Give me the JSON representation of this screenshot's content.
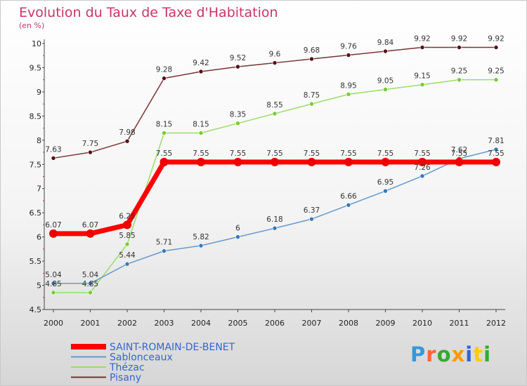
{
  "chart_data": {
    "type": "line",
    "title": "Evolution du Taux de Taxe d'Habitation",
    "unit_label": "(en %)",
    "x": [
      "2000",
      "2001",
      "2002",
      "2003",
      "2004",
      "2005",
      "2006",
      "2007",
      "2008",
      "2009",
      "2010",
      "2011",
      "2012"
    ],
    "ylim": [
      4.5,
      10
    ],
    "yticks": [
      "4.5",
      "5",
      "5.5",
      "6",
      "6.5",
      "7",
      "7.5",
      "8",
      "8.5",
      "9",
      "9.5",
      "10"
    ],
    "grid": false,
    "legend_position": "bottom-left",
    "series": [
      {
        "name": "SAINT-ROMAIN-DE-BENET",
        "color": "#ff0000",
        "marker": "#ee0000",
        "width": 7,
        "values": [
          6.07,
          6.07,
          6.25,
          7.55,
          7.55,
          7.55,
          7.55,
          7.55,
          7.55,
          7.55,
          7.55,
          7.55,
          7.55
        ],
        "labels": [
          "6.07",
          "6.07",
          "6.25",
          "7.55",
          "7.55",
          "7.55",
          "7.55",
          "7.55",
          "7.55",
          "7.55",
          "7.55",
          "7.55",
          "7.55"
        ]
      },
      {
        "name": "Sablonceaux",
        "color": "#6699cc",
        "marker": "#3377bb",
        "width": 1.5,
        "values": [
          5.04,
          5.04,
          5.44,
          5.71,
          5.82,
          6.0,
          6.18,
          6.37,
          6.66,
          6.95,
          7.26,
          7.62,
          7.81
        ],
        "labels": [
          "5.04",
          "5.04",
          "5.44",
          "5.71",
          "5.82",
          "6",
          "6.18",
          "6.37",
          "6.66",
          "6.95",
          "7.26",
          "7.62",
          "7.81"
        ]
      },
      {
        "name": "Thézac",
        "color": "#99dd66",
        "marker": "#77cc33",
        "width": 1.5,
        "values": [
          4.85,
          4.85,
          5.85,
          8.15,
          8.15,
          8.35,
          8.55,
          8.75,
          8.95,
          9.05,
          9.15,
          9.25,
          9.25
        ],
        "labels": [
          "4.85",
          "4.85",
          "5.85",
          "8.15",
          "8.15",
          "8.35",
          "8.55",
          "8.75",
          "8.95",
          "9.05",
          "9.15",
          "9.25",
          "9.25"
        ]
      },
      {
        "name": "Pisany",
        "color": "#7a3333",
        "marker": "#551111",
        "width": 1.5,
        "values": [
          7.63,
          7.75,
          7.98,
          9.28,
          9.42,
          9.52,
          9.6,
          9.68,
          9.76,
          9.84,
          9.92,
          9.92,
          9.92
        ],
        "labels": [
          "7.63",
          "7.75",
          "7.98",
          "9.28",
          "9.42",
          "9.52",
          "9.6",
          "9.68",
          "9.76",
          "9.84",
          "9.92",
          "9.92",
          "9.92"
        ]
      }
    ]
  },
  "brand": {
    "letters": [
      {
        "ch": "P",
        "color": "#3399dd"
      },
      {
        "ch": "r",
        "color": "#ff6633"
      },
      {
        "ch": "o",
        "color": "#33aa33"
      },
      {
        "ch": "x",
        "color": "#ff9900"
      },
      {
        "ch": "i",
        "color": "#3366cc"
      },
      {
        "ch": "t",
        "color": "#ffcc00"
      },
      {
        "ch": "i",
        "color": "#33aa33"
      }
    ]
  }
}
